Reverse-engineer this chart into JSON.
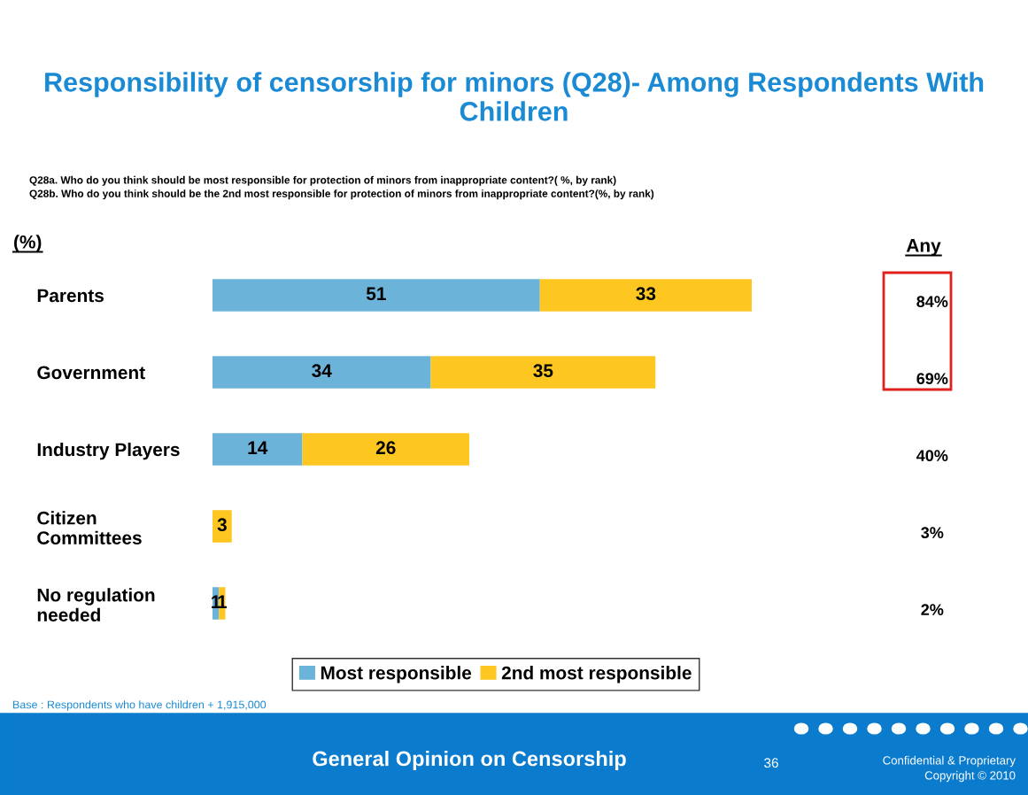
{
  "chart_data": {
    "type": "bar",
    "orientation": "horizontal",
    "stacked": true,
    "title": "Responsibility of censorship for minors (Q28)- Among Respondents With Children",
    "subtitle": "Q28a. Who do you think should be most responsible for protection of minors from inappropriate content?( %, by rank)\nQ28b. Who do you think should be the 2nd most responsible for protection of minors from inappropriate content?(%, by rank)",
    "categories": [
      "Parents",
      "Government",
      "Industry Players",
      "Citizen\nCommittees",
      "No regulation\nneeded"
    ],
    "series": [
      {
        "name": "Most responsible",
        "color": "#6bb3d8",
        "values": [
          51,
          34,
          14,
          null,
          1
        ]
      },
      {
        "name": "2nd most responsible",
        "color": "#fdc621",
        "values": [
          33,
          35,
          26,
          3,
          1
        ]
      }
    ],
    "data_labels": true,
    "legend": "bottom",
    "annotations": [
      "(%)",
      "Any",
      "Base : Respondents who have children + 1,915,000",
      "General Opinion on Censorship",
      "36",
      "Confidential & Proprietary",
      "Copyright © 2010",
      "84%",
      "69%",
      "40%",
      "3%",
      "2%"
    ]
  }
}
